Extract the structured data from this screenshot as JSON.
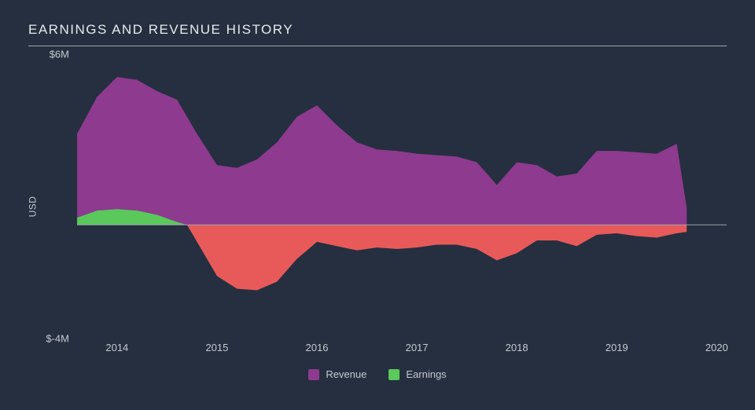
{
  "chart": {
    "type": "area",
    "title": "EARNINGS AND REVENUE HISTORY",
    "background_color": "#252f3f",
    "text_color": "#c5c9d0",
    "title_color": "#e8eaed",
    "title_fontsize": 17,
    "label_fontsize": 13,
    "grid_color": "#9ea4ad",
    "y_axis": {
      "label": "USD",
      "min": -4,
      "max": 6,
      "ticks": [
        {
          "value": 6,
          "label": "$6M"
        },
        {
          "value": -4,
          "label": "$-4M"
        }
      ]
    },
    "x_axis": {
      "min": 2013.6,
      "max": 2020.1,
      "ticks": [
        2014,
        2015,
        2016,
        2017,
        2018,
        2019,
        2020
      ]
    },
    "series": {
      "revenue": {
        "label": "Revenue",
        "fill_color": "#8d3a8f",
        "stroke_color": "#8d3a8f",
        "points": [
          [
            2013.6,
            3.2
          ],
          [
            2013.8,
            4.5
          ],
          [
            2014.0,
            5.2
          ],
          [
            2014.2,
            5.1
          ],
          [
            2014.4,
            4.7
          ],
          [
            2014.6,
            4.4
          ],
          [
            2014.8,
            3.2
          ],
          [
            2015.0,
            2.1
          ],
          [
            2015.2,
            2.0
          ],
          [
            2015.4,
            2.3
          ],
          [
            2015.6,
            2.9
          ],
          [
            2015.8,
            3.8
          ],
          [
            2016.0,
            4.2
          ],
          [
            2016.2,
            3.5
          ],
          [
            2016.4,
            2.9
          ],
          [
            2016.6,
            2.65
          ],
          [
            2016.8,
            2.6
          ],
          [
            2017.0,
            2.5
          ],
          [
            2017.2,
            2.45
          ],
          [
            2017.4,
            2.4
          ],
          [
            2017.6,
            2.2
          ],
          [
            2017.8,
            1.4
          ],
          [
            2018.0,
            2.2
          ],
          [
            2018.2,
            2.1
          ],
          [
            2018.4,
            1.7
          ],
          [
            2018.6,
            1.8
          ],
          [
            2018.8,
            2.6
          ],
          [
            2019.0,
            2.6
          ],
          [
            2019.2,
            2.55
          ],
          [
            2019.4,
            2.5
          ],
          [
            2019.6,
            2.85
          ],
          [
            2019.7,
            0.6
          ]
        ]
      },
      "earnings": {
        "label": "Earnings",
        "fill_positive_color": "#5ac85a",
        "fill_negative_color": "#e85a5a",
        "points": [
          [
            2013.6,
            0.25
          ],
          [
            2013.8,
            0.5
          ],
          [
            2014.0,
            0.55
          ],
          [
            2014.2,
            0.5
          ],
          [
            2014.4,
            0.35
          ],
          [
            2014.6,
            0.1
          ],
          [
            2014.7,
            0.0
          ],
          [
            2014.8,
            -0.6
          ],
          [
            2015.0,
            -1.8
          ],
          [
            2015.2,
            -2.25
          ],
          [
            2015.4,
            -2.3
          ],
          [
            2015.6,
            -2.0
          ],
          [
            2015.8,
            -1.2
          ],
          [
            2016.0,
            -0.6
          ],
          [
            2016.2,
            -0.75
          ],
          [
            2016.4,
            -0.9
          ],
          [
            2016.6,
            -0.8
          ],
          [
            2016.8,
            -0.85
          ],
          [
            2017.0,
            -0.8
          ],
          [
            2017.2,
            -0.7
          ],
          [
            2017.4,
            -0.7
          ],
          [
            2017.6,
            -0.85
          ],
          [
            2017.8,
            -1.25
          ],
          [
            2018.0,
            -1.0
          ],
          [
            2018.2,
            -0.55
          ],
          [
            2018.4,
            -0.55
          ],
          [
            2018.6,
            -0.75
          ],
          [
            2018.8,
            -0.35
          ],
          [
            2019.0,
            -0.3
          ],
          [
            2019.2,
            -0.4
          ],
          [
            2019.4,
            -0.45
          ],
          [
            2019.6,
            -0.3
          ],
          [
            2019.7,
            -0.25
          ]
        ]
      }
    },
    "legend_items": [
      {
        "label": "Revenue",
        "color": "#8d3a8f"
      },
      {
        "label": "Earnings",
        "color": "#5ac85a"
      }
    ]
  }
}
